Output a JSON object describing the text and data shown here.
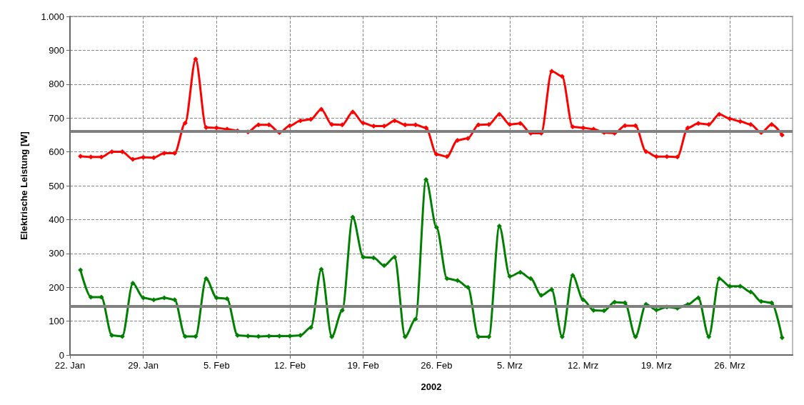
{
  "chart_data": {
    "type": "line",
    "xlabel": "2002",
    "ylabel": "Elektrische Leistung [W]",
    "x": [
      "2002-01-23",
      "2002-01-24",
      "2002-01-25",
      "2002-01-26",
      "2002-01-27",
      "2002-01-28",
      "2002-01-29",
      "2002-01-30",
      "2002-01-31",
      "2002-02-01",
      "2002-02-02",
      "2002-02-03",
      "2002-02-04",
      "2002-02-05",
      "2002-02-06",
      "2002-02-07",
      "2002-02-08",
      "2002-02-09",
      "2002-02-10",
      "2002-02-11",
      "2002-02-12",
      "2002-02-13",
      "2002-02-14",
      "2002-02-15",
      "2002-02-16",
      "2002-02-17",
      "2002-02-18",
      "2002-02-19",
      "2002-02-20",
      "2002-02-21",
      "2002-02-22",
      "2002-02-23",
      "2002-02-24",
      "2002-02-25",
      "2002-02-26",
      "2002-02-27",
      "2002-02-28",
      "2002-03-01",
      "2002-03-02",
      "2002-03-03",
      "2002-03-04",
      "2002-03-05",
      "2002-03-06",
      "2002-03-07",
      "2002-03-08",
      "2002-03-09",
      "2002-03-10",
      "2002-03-11",
      "2002-03-12",
      "2002-03-13",
      "2002-03-14",
      "2002-03-15",
      "2002-03-16",
      "2002-03-17",
      "2002-03-18",
      "2002-03-19",
      "2002-03-20",
      "2002-03-21",
      "2002-03-22",
      "2002-03-23",
      "2002-03-24",
      "2002-03-25",
      "2002-03-26",
      "2002-03-27",
      "2002-03-28",
      "2002-03-29",
      "2002-03-30",
      "2002-03-31"
    ],
    "series": [
      {
        "color": "#ff0000",
        "values": [
          587,
          585,
          585,
          600,
          600,
          578,
          584,
          583,
          596,
          596,
          685,
          874,
          672,
          671,
          667,
          662,
          659,
          680,
          680,
          657,
          677,
          692,
          696,
          726,
          681,
          680,
          718,
          685,
          676,
          676,
          692,
          680,
          680,
          671,
          593,
          586,
          634,
          640,
          680,
          681,
          711,
          681,
          684,
          655,
          655,
          838,
          823,
          674,
          671,
          667,
          657,
          655,
          677,
          677,
          601,
          586,
          586,
          585,
          671,
          684,
          681,
          711,
          698,
          690,
          681,
          657,
          681,
          650
        ]
      },
      {
        "color": "#008000",
        "values": [
          251,
          171,
          171,
          58,
          55,
          212,
          169,
          163,
          169,
          163,
          55,
          55,
          226,
          169,
          166,
          58,
          56,
          55,
          56,
          56,
          56,
          58,
          81,
          253,
          54,
          132,
          407,
          289,
          287,
          264,
          289,
          54,
          106,
          518,
          377,
          226,
          220,
          200,
          54,
          54,
          381,
          232,
          244,
          226,
          176,
          193,
          54,
          235,
          163,
          132,
          131,
          156,
          154,
          54,
          150,
          133,
          142,
          138,
          149,
          169,
          54,
          226,
          203,
          203,
          186,
          158,
          154,
          51
        ]
      }
    ],
    "xlim": [
      "2002-01-22",
      "2002-04-01"
    ],
    "xticks": [
      {
        "value": "2002-01-22",
        "label": "22. Jan"
      },
      {
        "value": "2002-01-29",
        "label": "29. Jan"
      },
      {
        "value": "2002-02-05",
        "label": "5. Feb"
      },
      {
        "value": "2002-02-12",
        "label": "12. Feb"
      },
      {
        "value": "2002-02-19",
        "label": "19. Feb"
      },
      {
        "value": "2002-02-26",
        "label": "26. Feb"
      },
      {
        "value": "2002-03-05",
        "label": "5. Mrz"
      },
      {
        "value": "2002-03-12",
        "label": "12. Mrz"
      },
      {
        "value": "2002-03-19",
        "label": "19. Mrz"
      },
      {
        "value": "2002-03-26",
        "label": "26. Mrz"
      }
    ],
    "ylim": [
      0,
      1000
    ],
    "yticks": [
      0,
      100,
      200,
      300,
      400,
      500,
      600,
      700,
      800,
      900,
      {
        "value": 1000,
        "label": "1.000"
      }
    ],
    "ref_lines": [
      {
        "axis": "y",
        "value": 660,
        "color": "#808080"
      },
      {
        "axis": "y",
        "value": 145,
        "color": "#808080"
      }
    ],
    "grid": true,
    "marker": "diamond",
    "line_style": "solid"
  }
}
